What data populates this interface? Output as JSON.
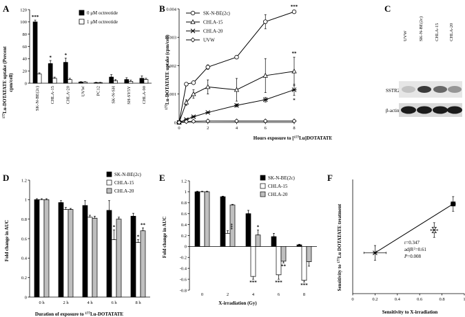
{
  "chart_data": [
    {
      "panel": "A",
      "type": "bar",
      "ylabel": "177Lu-DOTATATE uptake (Percent cpm/cell)",
      "ylabel_prefix": "177",
      "ylabel_main": "Lu-DOTATATE uptake (Percent",
      "ylabel_line2": "cpm/cell)",
      "ylim": [
        0,
        120
      ],
      "yticks": [
        0,
        20,
        40,
        60,
        80,
        100,
        120
      ],
      "categories": [
        "SK-N-BE(2c)",
        "CHLA-15",
        "CHLA-20",
        "UVW",
        "PC12",
        "SK-N-SH",
        "SH-SY5Y",
        "CHLA-90"
      ],
      "series": [
        {
          "name": "0 μM octreotide",
          "color": "#000000",
          "values": [
            100,
            32,
            34,
            2,
            1,
            10,
            6,
            8
          ],
          "errors": [
            3,
            5,
            7,
            0.5,
            0.5,
            4,
            3,
            4
          ]
        },
        {
          "name": "1 μM octreotide",
          "color": "#ffffff",
          "values": [
            15,
            8,
            6,
            2,
            1,
            4,
            3,
            6
          ],
          "errors": [
            2,
            2,
            2,
            0.5,
            0.5,
            2,
            2,
            2
          ]
        }
      ],
      "annotations": [
        {
          "category": "SK-N-BE(2c)",
          "text": "***"
        },
        {
          "category": "CHLA-15",
          "text": "*"
        },
        {
          "category": "CHLA-20",
          "text": "*"
        }
      ]
    },
    {
      "panel": "B",
      "type": "line",
      "xlabel": "Hours exposure to [177Lu]DOTATATE",
      "xlabel_main": "Hours exposure to [",
      "xlabel_sup": "177",
      "xlabel_end": "Lu]DOTATATE",
      "ylabel": "177Lu-DOTATATE uptake (cpm/cell)",
      "ylabel_prefix": "177",
      "ylabel_main": "Lu-DOTATATE uptake (cpm/cell)",
      "xlim": [
        0,
        8
      ],
      "xticks": [
        0,
        2,
        4,
        6,
        8
      ],
      "ylim": [
        0,
        0.004
      ],
      "yticks": [
        "0",
        "0.001",
        "0.002",
        "0.003",
        "0.004"
      ],
      "x": [
        0,
        0.5,
        1,
        2,
        4,
        6,
        8
      ],
      "series": [
        {
          "name": "SK-N-BE(2c)",
          "marker": "circle",
          "values": [
            0,
            0.00135,
            0.0014,
            0.00195,
            0.0023,
            0.00355,
            0.0039
          ],
          "errors": [
            0,
            5e-05,
            5e-05,
            8e-05,
            5e-05,
            0.00025,
            5e-05
          ]
        },
        {
          "name": "CHLA-15",
          "marker": "triangle",
          "values": [
            0,
            0.0007,
            0.001,
            0.00125,
            0.00115,
            0.00165,
            0.0018
          ],
          "errors": [
            0,
            0.0001,
            0.00015,
            0.00025,
            0.0004,
            0.0006,
            0.0005
          ]
        },
        {
          "name": "CHLA-20",
          "marker": "star",
          "values": [
            0,
            0.0001,
            0.0002,
            0.00035,
            0.0006,
            0.0008,
            0.00115
          ],
          "errors": [
            0,
            3e-05,
            3e-05,
            3e-05,
            5e-05,
            8e-05,
            0.0002
          ]
        },
        {
          "name": "UVW",
          "marker": "diamond",
          "values": [
            0,
            3e-05,
            4e-05,
            5e-05,
            5e-05,
            5e-05,
            5e-05
          ],
          "errors": [
            0,
            0,
            0,
            0,
            0,
            0,
            0
          ]
        }
      ],
      "annotations": [
        {
          "series": "SK-N-BE(2c)",
          "x": 8,
          "text": "***"
        },
        {
          "series": "CHLA-15",
          "x": 8,
          "text": "**"
        },
        {
          "series": "CHLA-20",
          "x": 8,
          "text": "*"
        }
      ]
    },
    {
      "panel": "C",
      "type": "blot",
      "lanes": [
        "UVW",
        "SK-N-BE(2c)",
        "CHLA-15",
        "CHLA-20"
      ],
      "bands": [
        "SSTR2",
        "β-actin"
      ]
    },
    {
      "panel": "D",
      "type": "bar",
      "xlabel": "Duration of exposure to 177Lu-DOTATATE",
      "xlabel_main": "Duration of exposure to ",
      "xlabel_sup": "177",
      "xlabel_end": "Lu-DOTATATE",
      "ylabel": "Fold change in AUC",
      "ylim": [
        0,
        1.2
      ],
      "yticks": [
        "0",
        "0.2",
        "0.4",
        "0.6",
        "0.8",
        "1",
        "1.2"
      ],
      "categories": [
        "0 h",
        "2 h",
        "4 h",
        "6 h",
        "8 h"
      ],
      "series": [
        {
          "name": "SK-N-BE(2c)",
          "color": "#000000",
          "values": [
            1.0,
            0.97,
            0.94,
            0.89,
            0.83
          ],
          "errors": [
            0.01,
            0.02,
            0.05,
            0.1,
            0.03
          ]
        },
        {
          "name": "CHLA-15",
          "color": "#ffffff",
          "values": [
            1.0,
            0.9,
            0.82,
            0.59,
            0.56
          ],
          "errors": [
            0.01,
            0.02,
            0.02,
            0.1,
            0.03
          ]
        },
        {
          "name": "CHLA-20",
          "color": "#bfbfbf",
          "values": [
            1.0,
            0.9,
            0.81,
            0.8,
            0.68
          ],
          "errors": [
            0.01,
            0.01,
            0.02,
            0.02,
            0.03
          ]
        }
      ],
      "annotations": [
        {
          "category": "6 h",
          "series": "CHLA-15",
          "text": "*"
        },
        {
          "category": "8 h",
          "series": "CHLA-15",
          "text": "*"
        },
        {
          "category": "8 h",
          "series": "CHLA-20",
          "text": "**"
        }
      ]
    },
    {
      "panel": "E",
      "type": "bar",
      "xlabel": "X-irradiation (Gy)",
      "ylabel": "Fold change in AUC",
      "ylim": [
        -0.8,
        1.2
      ],
      "yticks": [
        "-0.8",
        "-0.6",
        "-0.4",
        "-0.2",
        "0",
        "0.2",
        "0.4",
        "0.6",
        "0.8",
        "1",
        "1.2"
      ],
      "categories": [
        "0",
        "2",
        "4",
        "6",
        "8"
      ],
      "series": [
        {
          "name": "SK-N-BE(2c)",
          "color": "#000000",
          "values": [
            1.0,
            0.91,
            0.6,
            0.18,
            0.03
          ],
          "errors": [
            0.01,
            0.01,
            0.06,
            0.06,
            0.01
          ]
        },
        {
          "name": "CHLA-15",
          "color": "#ffffff",
          "values": [
            1.0,
            0.24,
            -0.55,
            -0.52,
            -0.62
          ],
          "errors": [
            0.01,
            0.05,
            0.05,
            0.08,
            0.03
          ]
        },
        {
          "name": "CHLA-20",
          "color": "#bfbfbf",
          "values": [
            1.0,
            0.76,
            0.21,
            -0.27,
            -0.28
          ],
          "errors": [
            0.01,
            0.01,
            0.09,
            0.03,
            0.08
          ]
        }
      ],
      "annotations": [
        {
          "category": "2",
          "series": "CHLA-15",
          "text": "***"
        },
        {
          "category": "4",
          "series": "CHLA-20",
          "text": "*"
        },
        {
          "category": "4",
          "series": "CHLA-15",
          "text": "***"
        },
        {
          "category": "6",
          "series": "CHLA-20",
          "text": "**"
        },
        {
          "category": "6",
          "series": "CHLA-15",
          "text": "***"
        },
        {
          "category": "8",
          "series": "CHLA-15",
          "text": "***"
        }
      ]
    },
    {
      "panel": "F",
      "type": "scatter",
      "xlabel": "Sensitivity to X-irradiation",
      "ylabel": "Sensitivity to 177Lu DOTATATE treatment",
      "ylabel_main": "Sensitivity to ",
      "ylabel_sup": "177",
      "ylabel_end": "Lu DOTATATE treatment",
      "xlim": [
        0,
        1
      ],
      "xticks": [
        "0",
        "0.2",
        "0.4",
        "0.6",
        "0.8",
        "1"
      ],
      "points": [
        {
          "x": 0.2,
          "y": 0.55,
          "xerr": 0.1,
          "yerr": 0.045,
          "marker": "star"
        },
        {
          "x": 0.73,
          "y": 0.69,
          "xerr": 0.03,
          "yerr": 0.045,
          "marker": "hourglass"
        },
        {
          "x": 0.9,
          "y": 0.85,
          "xerr": 0.02,
          "yerr": 0.045,
          "marker": "square"
        }
      ],
      "fit_line": {
        "x": [
          0.2,
          0.9
        ],
        "y": [
          0.55,
          0.85
        ]
      },
      "stats": [
        "r=0.347",
        "adjR²=0.61",
        "P=0.008"
      ],
      "stats_r": "r=0.347",
      "stats_adj_main": "adjR",
      "stats_adj_sup": "2",
      "stats_adj_val": "=0.61",
      "stats_p_letter": "P",
      "stats_p_val": "=0.008"
    }
  ]
}
